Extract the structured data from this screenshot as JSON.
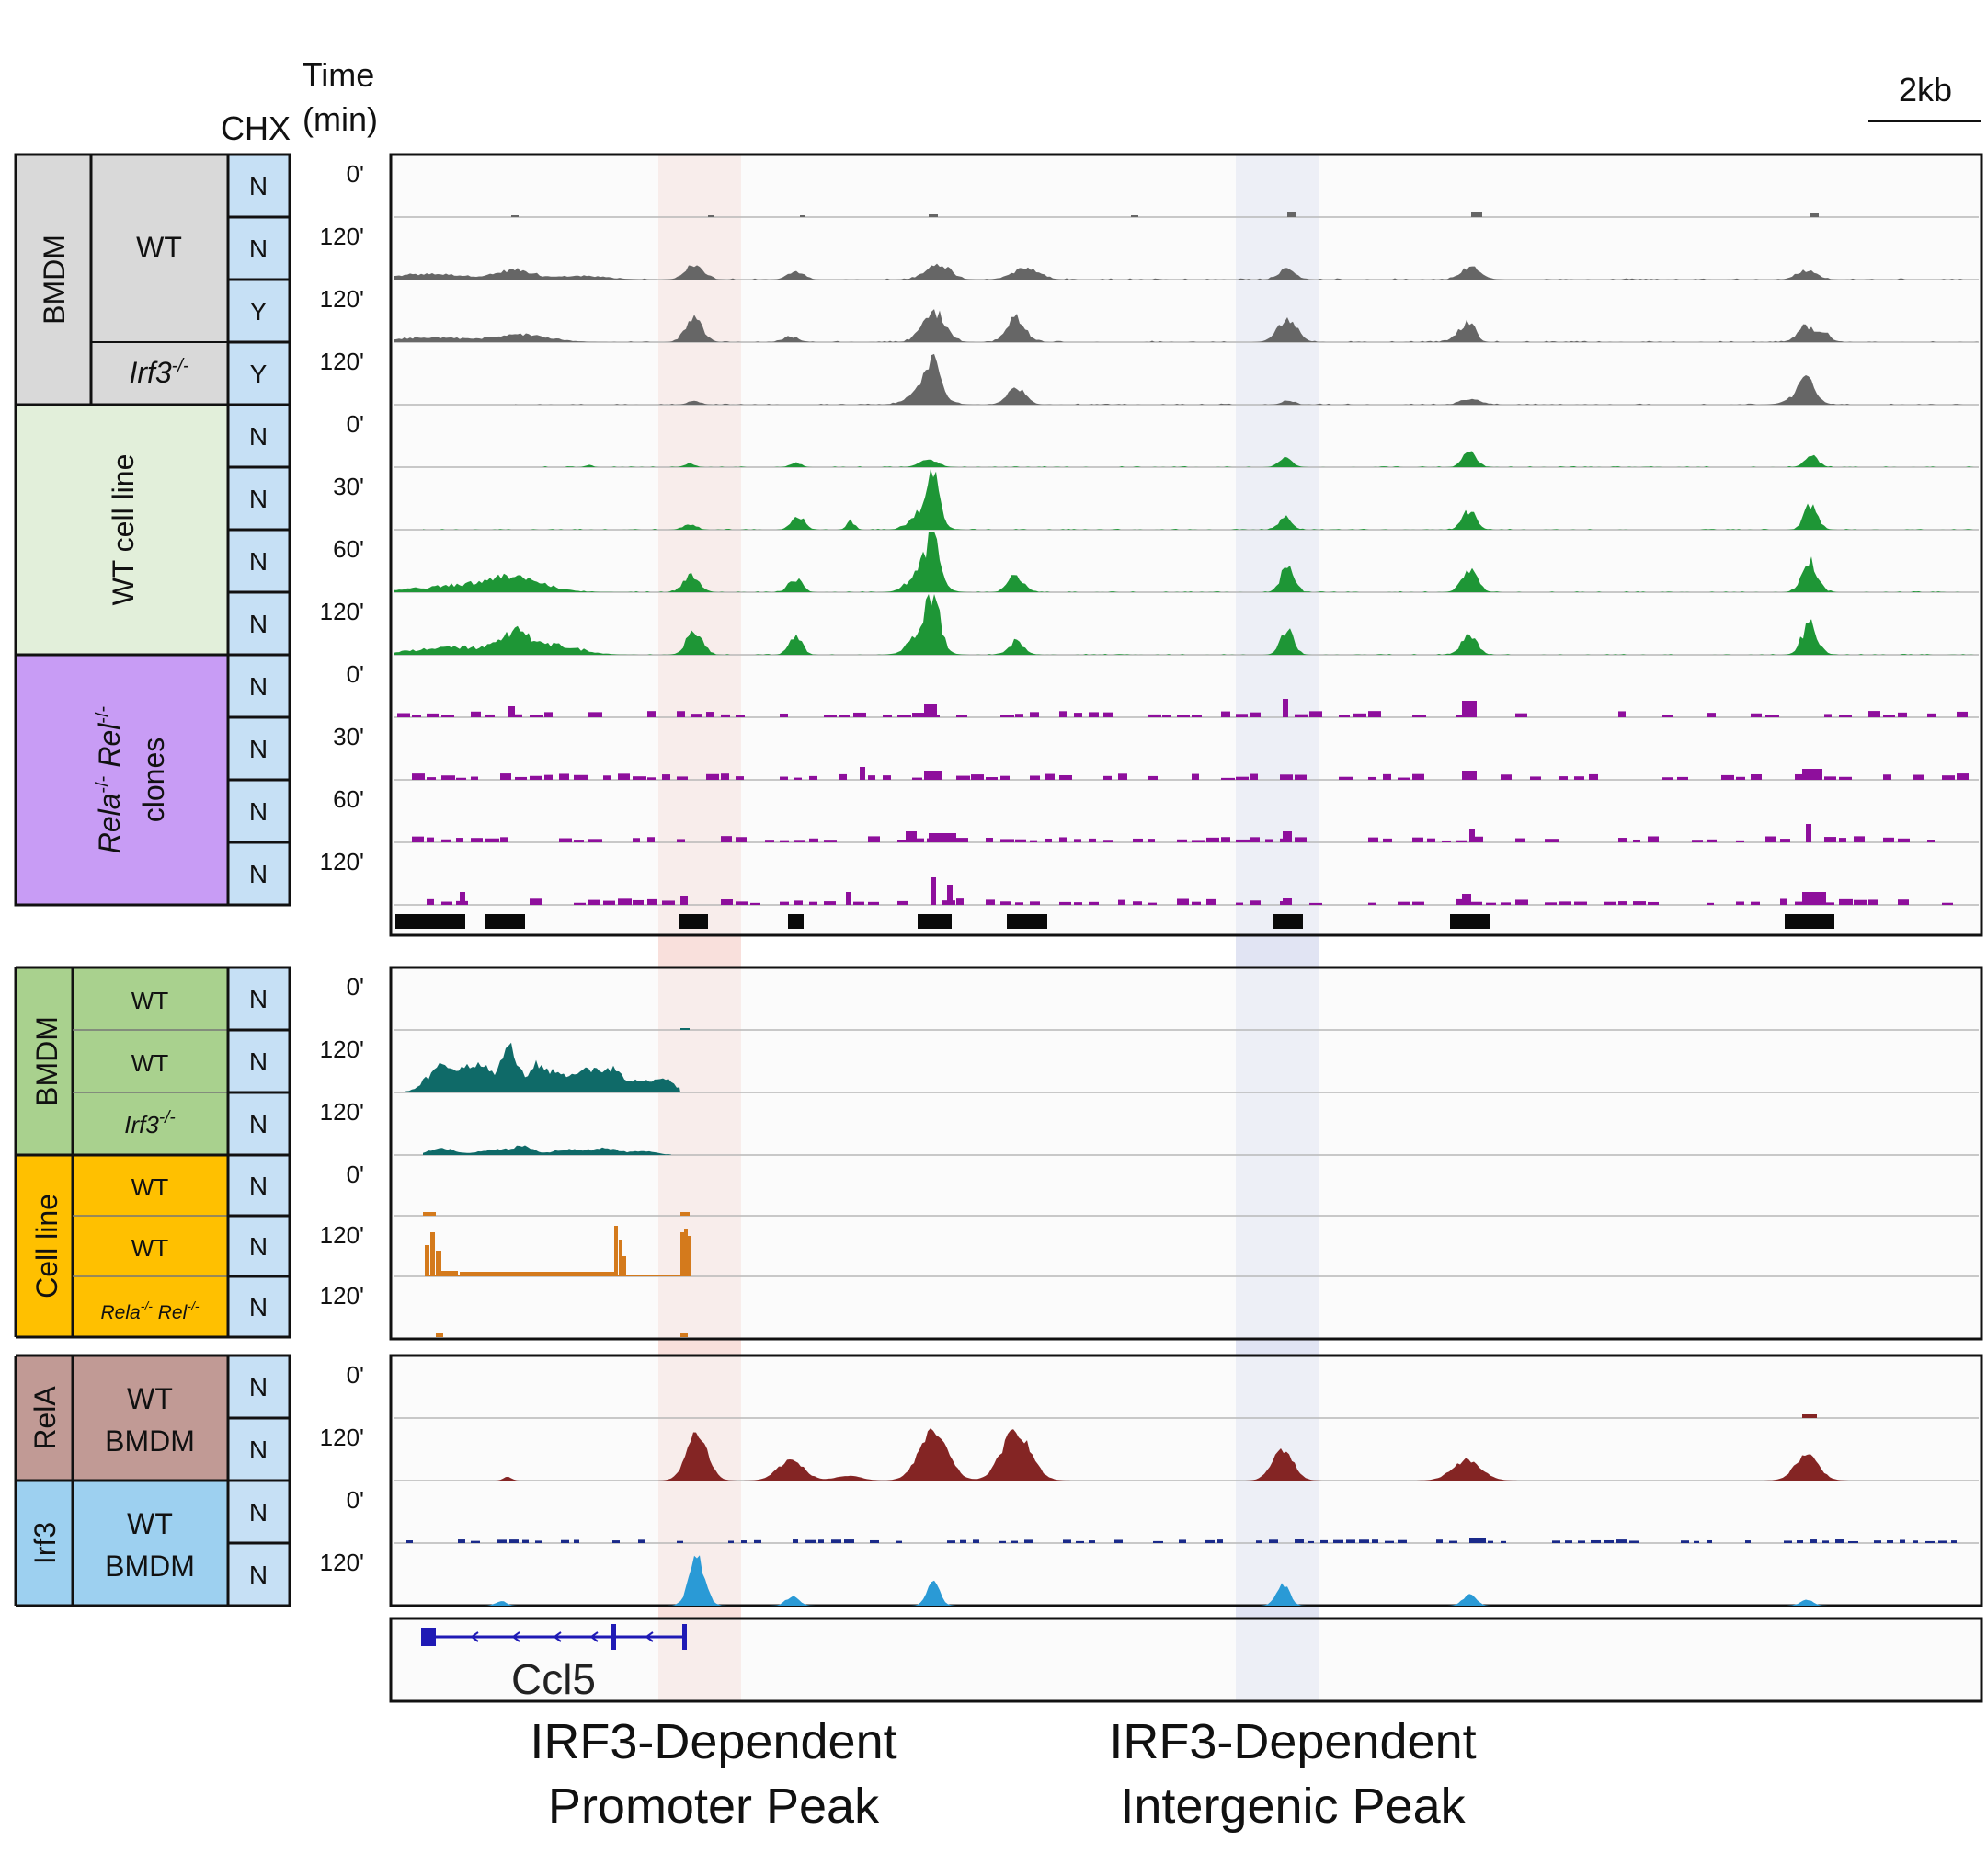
{
  "header": {
    "time_line1": "Time",
    "time_line2": "(min)",
    "chx": "CHX",
    "scale": "2kb"
  },
  "panel1": {
    "groups": [
      {
        "label": "BMDM",
        "color": "#d9d9d9"
      },
      {
        "label": "WT cell line",
        "color": "#e2efda"
      },
      {
        "label": "Rela-/- Rel-/- clones",
        "color": "#c89cf5"
      }
    ],
    "genotypes": [
      "WT",
      "Irf3-/-"
    ],
    "chx": [
      "N",
      "N",
      "Y",
      "Y",
      "N",
      "N",
      "N",
      "N",
      "N",
      "N",
      "N",
      "N"
    ],
    "times": [
      "0'",
      "120'",
      "120'",
      "120'",
      "0'",
      "30'",
      "60'",
      "120'",
      "0'",
      "30'",
      "60'",
      "120'"
    ]
  },
  "panel2": {
    "groups": [
      {
        "label": "BMDM",
        "color": "#a9d18e"
      },
      {
        "label": "Cell line",
        "color": "#ffc000"
      }
    ],
    "genotypes": [
      "WT",
      "WT",
      "Irf3-/-",
      "WT",
      "WT",
      "Rela-/- Rel-/-"
    ],
    "chx": [
      "N",
      "N",
      "N",
      "N",
      "N",
      "N"
    ],
    "times": [
      "0'",
      "120'",
      "120'",
      "0'",
      "120'",
      "120'"
    ]
  },
  "panel3": {
    "groups": [
      {
        "label": "RelA",
        "color": "#c19a95",
        "sub1": "WT",
        "sub2": "BMDM"
      },
      {
        "label": "Irf3",
        "color": "#9dd0f0",
        "sub1": "WT",
        "sub2": "BMDM"
      }
    ],
    "chx": [
      "N",
      "N",
      "N",
      "N"
    ],
    "times": [
      "0'",
      "120'",
      "0'",
      "120'"
    ]
  },
  "gene": {
    "name": "Ccl5"
  },
  "annotations": {
    "promoter": {
      "line1": "IRF3-Dependent",
      "line2": "Promoter Peak",
      "color": "#f4c7c0"
    },
    "intergenic": {
      "line1": "IRF3-Dependent",
      "line2": "Intergenic Peak",
      "color": "#c9cdea"
    }
  },
  "track_colors": {
    "bmdm": "#666666",
    "cellline": "#1e9636",
    "relko": "#8e0f9c",
    "rna_bmdm": "#0f6a68",
    "rna_cell": "#d47a1c",
    "rela": "#842524",
    "irf3_0": "#1a2a8a",
    "irf3_120": "#2a9ad6"
  }
}
